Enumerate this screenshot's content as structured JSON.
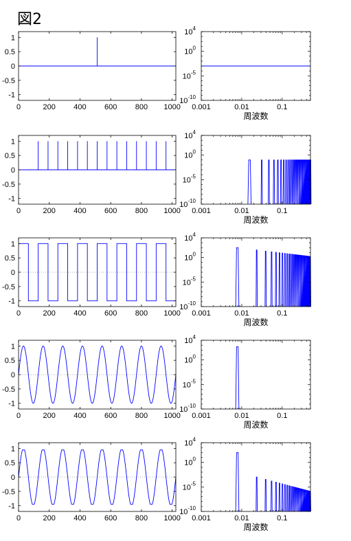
{
  "figure": {
    "title": "図2"
  },
  "colors": {
    "signal": "#0000ff",
    "axis": "#000000",
    "zero_line": "#9090a0"
  },
  "chart_data": [
    {
      "panel": 1,
      "kind": "time",
      "type": "line",
      "signal": "impulse",
      "xlim": [
        0,
        1024
      ],
      "ylim": [
        -1.2,
        1.2
      ],
      "xticks": [
        0,
        200,
        400,
        600,
        800,
        1000
      ],
      "yticks": [
        -1,
        -0.5,
        0,
        0.5,
        1
      ],
      "impulse_positions": [
        512
      ],
      "impulse_height": 1
    },
    {
      "panel": 1,
      "kind": "spectrum",
      "type": "line",
      "yscale": "log",
      "xscale": "log",
      "xlabel": "周波数",
      "xlim": [
        0.001,
        0.5
      ],
      "ylim_exp": [
        -10,
        4
      ],
      "xticks": [
        0.001,
        0.01,
        0.1
      ],
      "xtick_labels": [
        "0.001",
        "0.01",
        "0.1"
      ],
      "ytick_exps": [
        -10,
        -5,
        0,
        4
      ],
      "flat_level_exp": -3,
      "x_range": [
        0.001,
        0.5
      ]
    },
    {
      "panel": 2,
      "kind": "time",
      "type": "line",
      "signal": "impulse train",
      "xlim": [
        0,
        1024
      ],
      "ylim": [
        -1.2,
        1.2
      ],
      "xticks": [
        0,
        200,
        400,
        600,
        800,
        1000
      ],
      "yticks": [
        -1,
        -0.5,
        0,
        0.5,
        1
      ],
      "impulse_positions": [
        128,
        192,
        256,
        320,
        384,
        448,
        512,
        576,
        640,
        704,
        768,
        832,
        896,
        960
      ],
      "impulse_height": 1
    },
    {
      "panel": 2,
      "kind": "spectrum",
      "type": "line",
      "yscale": "log",
      "xscale": "log",
      "xlabel": "周波数",
      "xlim": [
        0.001,
        0.5
      ],
      "ylim_exp": [
        -10,
        4
      ],
      "xticks": [
        0.001,
        0.01,
        0.1
      ],
      "xtick_labels": [
        "0.001",
        "0.01",
        "0.1"
      ],
      "ytick_exps": [
        -10,
        -5,
        0,
        4
      ],
      "spike_spacing": 0.015625,
      "spike_level_exp": -1,
      "decay": 0
    },
    {
      "panel": 3,
      "kind": "time",
      "type": "line",
      "signal": "square wave",
      "xlim": [
        0,
        1024
      ],
      "ylim": [
        -1.2,
        1.2
      ],
      "xticks": [
        0,
        200,
        400,
        600,
        800,
        1000
      ],
      "yticks": [
        -1,
        -0.5,
        0,
        0.5,
        1
      ],
      "period": 128,
      "amplitude": 1,
      "phase_offset": 64,
      "zero_line": true
    },
    {
      "panel": 3,
      "kind": "spectrum",
      "type": "line",
      "yscale": "log",
      "xscale": "log",
      "xlabel": "周波数",
      "xlim": [
        0.001,
        0.5
      ],
      "ylim_exp": [
        -10,
        4
      ],
      "xticks": [
        0.001,
        0.01,
        0.1
      ],
      "xtick_labels": [
        "0.001",
        "0.01",
        "0.1"
      ],
      "ytick_exps": [
        -10,
        -5,
        0,
        4
      ],
      "spike_spacing": 0.0078125,
      "odd_harmonics_only": true,
      "spike_level_exp": 2,
      "decay": 1
    },
    {
      "panel": 4,
      "kind": "time",
      "type": "line",
      "signal": "sine wave",
      "xlim": [
        0,
        1024
      ],
      "ylim": [
        -1.2,
        1.2
      ],
      "xticks": [
        0,
        200,
        400,
        600,
        800,
        1000
      ],
      "yticks": [
        -1,
        -0.5,
        0,
        0.5,
        1
      ],
      "period": 128,
      "amplitude": 1,
      "zero_line": true
    },
    {
      "panel": 4,
      "kind": "spectrum",
      "type": "line",
      "yscale": "log",
      "xscale": "log",
      "xlabel": "周波数",
      "xlim": [
        0.001,
        0.5
      ],
      "ylim_exp": [
        -10,
        4
      ],
      "xticks": [
        0.001,
        0.01,
        0.1
      ],
      "xtick_labels": [
        "0.001",
        "0.01",
        "0.1"
      ],
      "ytick_exps": [
        -10,
        -5,
        0,
        4
      ],
      "spike_spacing": 0.0078125,
      "spike_level_exp": 2.7,
      "single_peak": true
    },
    {
      "panel": 5,
      "kind": "time",
      "type": "line",
      "signal": "clipped sine wave",
      "xlim": [
        0,
        1024
      ],
      "ylim": [
        -1.2,
        1.2
      ],
      "xticks": [
        0,
        200,
        400,
        600,
        800,
        1000
      ],
      "yticks": [
        -1,
        -0.5,
        0,
        0.5,
        1
      ],
      "period": 128,
      "amplitude": 1,
      "clip": 0.95,
      "zero_line": true
    },
    {
      "panel": 5,
      "kind": "spectrum",
      "type": "line",
      "yscale": "log",
      "xscale": "log",
      "xlabel": "周波数",
      "xlim": [
        0.001,
        0.5
      ],
      "ylim_exp": [
        -10,
        4
      ],
      "xticks": [
        0.001,
        0.01,
        0.1
      ],
      "xtick_labels": [
        "0.001",
        "0.01",
        "0.1"
      ],
      "ytick_exps": [
        -10,
        -5,
        0,
        4
      ],
      "spike_spacing": 0.0078125,
      "odd_harmonics_only": true,
      "spike_level_exp": 2,
      "first_harmonic_level_exp": -3,
      "decay": 2.2
    }
  ]
}
